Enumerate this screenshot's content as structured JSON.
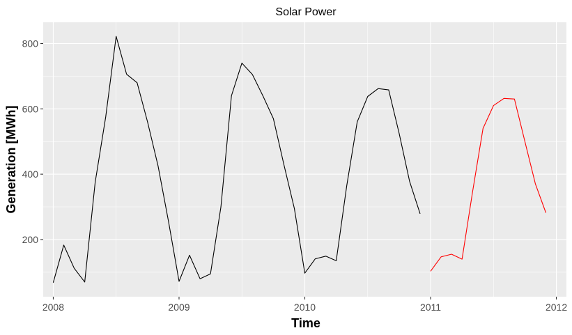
{
  "chart_data": {
    "type": "line",
    "title": "Solar Power",
    "xlabel": "Time",
    "ylabel": "Generation [MWh]",
    "xlim": [
      2007.92,
      2012.08
    ],
    "ylim": [
      25,
      865
    ],
    "x_ticks": [
      2008,
      2009,
      2010,
      2011,
      2012
    ],
    "y_ticks": [
      200,
      400,
      600,
      800
    ],
    "grid": true,
    "panel_background": "#ebebeb",
    "grid_color": "#ffffff",
    "series": [
      {
        "color": "#000000",
        "x": [
          2008.0,
          2008.0833,
          2008.1667,
          2008.25,
          2008.3333,
          2008.4167,
          2008.5,
          2008.5833,
          2008.6667,
          2008.75,
          2008.8333,
          2008.9167,
          2009.0,
          2009.0833,
          2009.1667,
          2009.25,
          2009.3333,
          2009.4167,
          2009.5,
          2009.5833,
          2009.6667,
          2009.75,
          2009.8333,
          2009.9167,
          2010.0,
          2010.0833,
          2010.1667,
          2010.25,
          2010.3333,
          2010.4167,
          2010.5,
          2010.5833,
          2010.6667,
          2010.75,
          2010.8333,
          2010.9167
        ],
        "values": [
          68,
          183,
          112,
          70,
          375,
          575,
          822,
          706,
          680,
          560,
          425,
          255,
          72,
          152,
          80,
          95,
          300,
          640,
          740,
          705,
          640,
          570,
          430,
          295,
          97,
          141,
          149,
          135,
          365,
          560,
          638,
          662,
          658,
          525,
          378,
          279
        ]
      },
      {
        "color": "#ff0000",
        "x": [
          2011.0,
          2011.0833,
          2011.1667,
          2011.25,
          2011.3333,
          2011.4167,
          2011.5,
          2011.5833,
          2011.6667,
          2011.75,
          2011.8333,
          2011.9167
        ],
        "values": [
          103,
          147,
          155,
          140,
          345,
          540,
          610,
          632,
          630,
          500,
          370,
          282
        ]
      }
    ]
  }
}
